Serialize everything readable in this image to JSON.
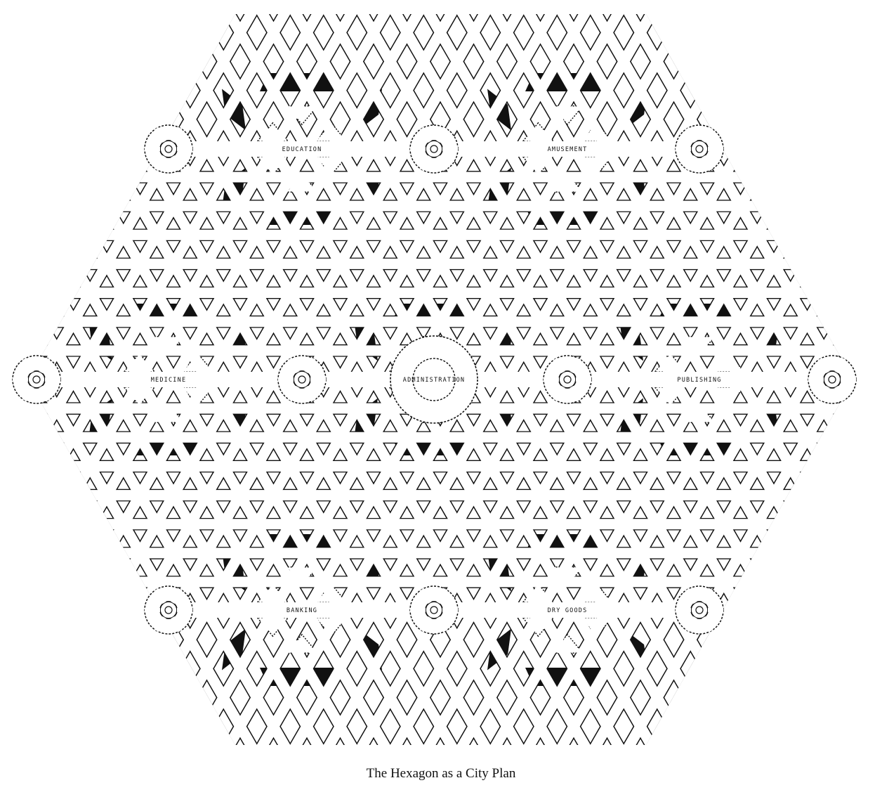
{
  "caption": "The Hexagon as a City Plan",
  "districts": [
    {
      "key": "education",
      "label": "EDUCATION"
    },
    {
      "key": "amusement",
      "label": "AMUSEMENT"
    },
    {
      "key": "medicine",
      "label": "MEDICINE"
    },
    {
      "key": "administration",
      "label": "ADMINISTRATION"
    },
    {
      "key": "publishing",
      "label": "PUBLISHING"
    },
    {
      "key": "banking",
      "label": "BANKING"
    },
    {
      "key": "dry_goods",
      "label": "DRY GOODS"
    }
  ],
  "colors": {
    "ink": "#111111",
    "paper": "#ffffff"
  }
}
